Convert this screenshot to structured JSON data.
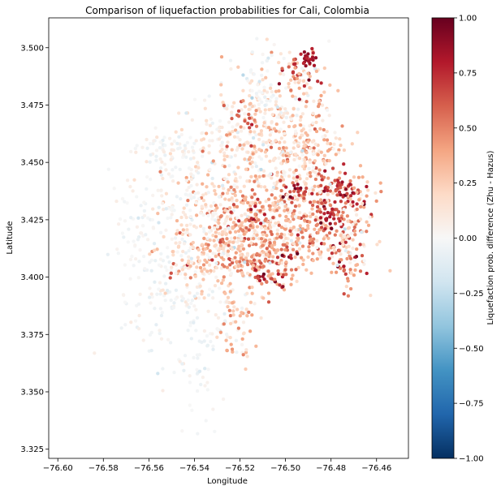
{
  "chart_data": {
    "type": "scatter",
    "title": "Comparison of liquefaction probabilities for Cali, Colombia",
    "xlabel": "Longitude",
    "ylabel": "Latitude",
    "xlim": [
      -76.604,
      -76.446
    ],
    "ylim": [
      3.321,
      3.513
    ],
    "xticks": [
      -76.6,
      -76.58,
      -76.56,
      -76.54,
      -76.52,
      -76.5,
      -76.48,
      -76.46
    ],
    "xtick_labels": [
      "−76.60",
      "−76.58",
      "−76.56",
      "−76.54",
      "−76.52",
      "−76.50",
      "−76.48",
      "−76.46"
    ],
    "yticks": [
      3.325,
      3.35,
      3.375,
      3.4,
      3.425,
      3.45,
      3.475,
      3.5
    ],
    "ytick_labels": [
      "3.325",
      "3.350",
      "3.375",
      "3.400",
      "3.425",
      "3.450",
      "3.475",
      "3.500"
    ],
    "grid": false,
    "colorbar": {
      "label": "Liquefaction prob. difference (Zhu - Hazus)",
      "cmap": "RdBu_r",
      "vmin": -1.0,
      "vmax": 1.0,
      "ticks": [
        -1.0,
        -0.75,
        -0.5,
        -0.25,
        0.0,
        0.25,
        0.5,
        0.75,
        1.0
      ],
      "tick_labels": [
        "−1.00",
        "−0.75",
        "−0.50",
        "−0.25",
        "0.00",
        "0.25",
        "0.50",
        "0.75",
        "1.00"
      ],
      "stops": [
        "#053061",
        "#2166ac",
        "#4393c3",
        "#92c5de",
        "#d1e5f0",
        "#f7f7f7",
        "#fddbc7",
        "#f4a582",
        "#d6604d",
        "#b2182b",
        "#67001f"
      ]
    },
    "clusters": [
      {
        "lon": -76.552,
        "lat": 3.455,
        "slon": 0.008,
        "slat": 0.004,
        "n": 70,
        "v": 0.0,
        "sv": 0.06
      },
      {
        "lon": -76.565,
        "lat": 3.42,
        "slon": 0.006,
        "slat": 0.012,
        "n": 60,
        "v": 0.0,
        "sv": 0.05
      },
      {
        "lon": -76.55,
        "lat": 3.39,
        "slon": 0.01,
        "slat": 0.015,
        "n": 120,
        "v": -0.02,
        "sv": 0.06
      },
      {
        "lon": -76.538,
        "lat": 3.365,
        "slon": 0.005,
        "slat": 0.008,
        "n": 25,
        "v": -0.05,
        "sv": 0.06
      },
      {
        "lon": -76.54,
        "lat": 3.345,
        "slon": 0.006,
        "slat": 0.008,
        "n": 15,
        "v": 0.0,
        "sv": 0.03
      },
      {
        "lon": -76.525,
        "lat": 3.385,
        "slon": 0.006,
        "slat": 0.008,
        "n": 40,
        "v": 0.05,
        "sv": 0.1
      },
      {
        "lon": -76.53,
        "lat": 3.46,
        "slon": 0.01,
        "slat": 0.01,
        "n": 90,
        "v": 0.05,
        "sv": 0.1
      },
      {
        "lon": -76.505,
        "lat": 3.48,
        "slon": 0.012,
        "slat": 0.01,
        "n": 130,
        "v": 0.12,
        "sv": 0.15
      },
      {
        "lon": -76.495,
        "lat": 3.49,
        "slon": 0.005,
        "slat": 0.006,
        "n": 40,
        "v": 0.5,
        "sv": 0.25
      },
      {
        "lon": -76.49,
        "lat": 3.495,
        "slon": 0.002,
        "slat": 0.002,
        "n": 20,
        "v": 0.85,
        "sv": 0.08
      },
      {
        "lon": -76.51,
        "lat": 3.44,
        "slon": 0.015,
        "slat": 0.015,
        "n": 250,
        "v": 0.25,
        "sv": 0.17
      },
      {
        "lon": -76.52,
        "lat": 3.415,
        "slon": 0.012,
        "slat": 0.01,
        "n": 220,
        "v": 0.3,
        "sv": 0.2
      },
      {
        "lon": -76.5,
        "lat": 3.42,
        "slon": 0.012,
        "slat": 0.01,
        "n": 220,
        "v": 0.35,
        "sv": 0.2
      },
      {
        "lon": -76.505,
        "lat": 3.402,
        "slon": 0.006,
        "slat": 0.004,
        "n": 50,
        "v": 0.55,
        "sv": 0.2
      },
      {
        "lon": -76.515,
        "lat": 3.405,
        "slon": 0.006,
        "slat": 0.003,
        "n": 40,
        "v": 0.5,
        "sv": 0.2
      },
      {
        "lon": -76.478,
        "lat": 3.43,
        "slon": 0.008,
        "slat": 0.01,
        "n": 150,
        "v": 0.45,
        "sv": 0.22
      },
      {
        "lon": -76.475,
        "lat": 3.438,
        "slon": 0.004,
        "slat": 0.003,
        "n": 30,
        "v": 0.75,
        "sv": 0.12
      },
      {
        "lon": -76.48,
        "lat": 3.425,
        "slon": 0.003,
        "slat": 0.003,
        "n": 20,
        "v": 0.8,
        "sv": 0.1
      },
      {
        "lon": -76.473,
        "lat": 3.405,
        "slon": 0.004,
        "slat": 0.006,
        "n": 40,
        "v": 0.6,
        "sv": 0.2
      },
      {
        "lon": -76.485,
        "lat": 3.46,
        "slon": 0.005,
        "slat": 0.008,
        "n": 60,
        "v": 0.3,
        "sv": 0.2
      },
      {
        "lon": -76.495,
        "lat": 3.45,
        "slon": 0.006,
        "slat": 0.008,
        "n": 60,
        "v": 0.2,
        "sv": 0.15
      },
      {
        "lon": -76.53,
        "lat": 3.42,
        "slon": 0.01,
        "slat": 0.01,
        "n": 110,
        "v": 0.2,
        "sv": 0.18
      },
      {
        "lon": -76.54,
        "lat": 3.405,
        "slon": 0.01,
        "slat": 0.008,
        "n": 90,
        "v": 0.15,
        "sv": 0.15
      },
      {
        "lon": -76.52,
        "lat": 3.38,
        "slon": 0.004,
        "slat": 0.008,
        "n": 40,
        "v": 0.3,
        "sv": 0.15
      },
      {
        "lon": -76.51,
        "lat": 3.478,
        "slon": 0.004,
        "slat": 0.01,
        "n": 40,
        "v": 0.0,
        "sv": 0.08
      },
      {
        "lon": -76.47,
        "lat": 3.42,
        "slon": 0.005,
        "slat": 0.01,
        "n": 60,
        "v": 0.2,
        "sv": 0.15
      },
      {
        "lon": -76.545,
        "lat": 3.435,
        "slon": 0.01,
        "slat": 0.01,
        "n": 80,
        "v": 0.0,
        "sv": 0.06
      },
      {
        "lon": -76.5,
        "lat": 3.46,
        "slon": 0.01,
        "slat": 0.01,
        "n": 80,
        "v": 0.15,
        "sv": 0.15
      },
      {
        "lon": -76.515,
        "lat": 3.425,
        "slon": 0.003,
        "slat": 0.003,
        "n": 20,
        "v": 0.7,
        "sv": 0.15
      },
      {
        "lon": -76.495,
        "lat": 3.438,
        "slon": 0.003,
        "slat": 0.003,
        "n": 25,
        "v": 0.7,
        "sv": 0.15
      },
      {
        "lon": -76.518,
        "lat": 3.47,
        "slon": 0.004,
        "slat": 0.004,
        "n": 20,
        "v": 0.55,
        "sv": 0.15
      }
    ]
  }
}
